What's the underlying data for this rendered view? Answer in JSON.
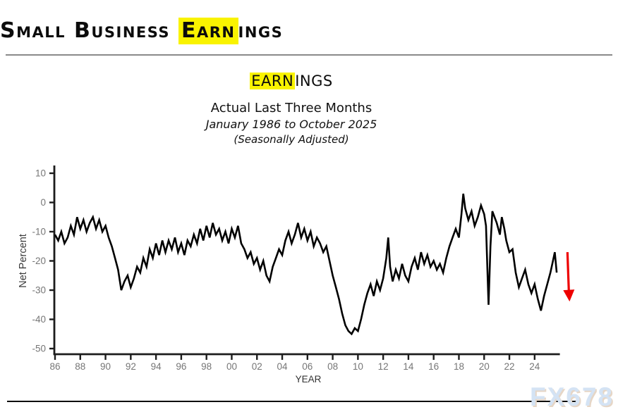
{
  "header": {
    "title": {
      "pre": "Small Business ",
      "highlight": "Earn",
      "post": "ings"
    }
  },
  "chart_header": {
    "title": {
      "highlight": "EARN",
      "post": "INGS"
    },
    "subtitle": "Actual Last Three Months",
    "period": "January 1986 to October 2025",
    "note": "(Seasonally Adjusted)"
  },
  "watermark": "FX678",
  "colors": {
    "highlight": "#f9f300",
    "line": "#000000",
    "axis": "#1c1c1c",
    "tick_label": "#767676",
    "axis_title": "#3a3a3a",
    "arrow": "#ee0000",
    "watermark": "#d4e3f4",
    "watermark_shadow": "#e6d6c6"
  },
  "chart_data": {
    "type": "line",
    "title": "EARNINGS",
    "subtitle": "Actual Last Three Months, January 1986 to October 2025 (Seasonally Adjusted)",
    "xlabel": "YEAR",
    "ylabel": "Net Percent",
    "xlim": [
      1986,
      2026
    ],
    "ylim": [
      -50,
      10
    ],
    "grid": false,
    "legend": null,
    "yticks": [
      10,
      0,
      -10,
      -20,
      -30,
      -40,
      -50
    ],
    "xtick_years": [
      1986,
      1988,
      1990,
      1992,
      1994,
      1996,
      1998,
      2000,
      2002,
      2004,
      2006,
      2008,
      2010,
      2012,
      2014,
      2016,
      2018,
      2020,
      2022,
      2024
    ],
    "xtick_labels": [
      "86",
      "88",
      "90",
      "92",
      "94",
      "96",
      "98",
      "00",
      "02",
      "04",
      "06",
      "08",
      "10",
      "12",
      "14",
      "16",
      "18",
      "20",
      "22",
      "24"
    ],
    "annotation_arrow": {
      "x_year": 2026.6,
      "from_value": -17,
      "to_value": -33.9
    },
    "points": [
      [
        1986.0,
        -11
      ],
      [
        1986.25,
        -13
      ],
      [
        1986.5,
        -10
      ],
      [
        1986.75,
        -14
      ],
      [
        1987.0,
        -12
      ],
      [
        1987.25,
        -8
      ],
      [
        1987.5,
        -11
      ],
      [
        1987.75,
        -5
      ],
      [
        1988.0,
        -9
      ],
      [
        1988.25,
        -6
      ],
      [
        1988.5,
        -10
      ],
      [
        1988.75,
        -7
      ],
      [
        1989.0,
        -5
      ],
      [
        1989.25,
        -9
      ],
      [
        1989.5,
        -6
      ],
      [
        1989.75,
        -10
      ],
      [
        1990.0,
        -8
      ],
      [
        1990.25,
        -12
      ],
      [
        1990.5,
        -15
      ],
      [
        1990.75,
        -19
      ],
      [
        1991.0,
        -23
      ],
      [
        1991.25,
        -30
      ],
      [
        1991.5,
        -27
      ],
      [
        1991.75,
        -25
      ],
      [
        1992.0,
        -29
      ],
      [
        1992.25,
        -26
      ],
      [
        1992.5,
        -22
      ],
      [
        1992.75,
        -24
      ],
      [
        1993.0,
        -19
      ],
      [
        1993.25,
        -22
      ],
      [
        1993.5,
        -16
      ],
      [
        1993.75,
        -19
      ],
      [
        1994.0,
        -14
      ],
      [
        1994.25,
        -18
      ],
      [
        1994.5,
        -13
      ],
      [
        1994.75,
        -17
      ],
      [
        1995.0,
        -13
      ],
      [
        1995.25,
        -16
      ],
      [
        1995.5,
        -12
      ],
      [
        1995.75,
        -17
      ],
      [
        1996.0,
        -14
      ],
      [
        1996.25,
        -18
      ],
      [
        1996.5,
        -13
      ],
      [
        1996.75,
        -15
      ],
      [
        1997.0,
        -11
      ],
      [
        1997.25,
        -14
      ],
      [
        1997.5,
        -9
      ],
      [
        1997.75,
        -13
      ],
      [
        1998.0,
        -8
      ],
      [
        1998.25,
        -12
      ],
      [
        1998.5,
        -7
      ],
      [
        1998.75,
        -11
      ],
      [
        1999.0,
        -9
      ],
      [
        1999.25,
        -13
      ],
      [
        1999.5,
        -10
      ],
      [
        1999.75,
        -14
      ],
      [
        2000.0,
        -9
      ],
      [
        2000.25,
        -12
      ],
      [
        2000.5,
        -8
      ],
      [
        2000.75,
        -14
      ],
      [
        2001.0,
        -16
      ],
      [
        2001.25,
        -19
      ],
      [
        2001.5,
        -17
      ],
      [
        2001.75,
        -21
      ],
      [
        2002.0,
        -19
      ],
      [
        2002.25,
        -23
      ],
      [
        2002.5,
        -20
      ],
      [
        2002.75,
        -25
      ],
      [
        2003.0,
        -27
      ],
      [
        2003.25,
        -22
      ],
      [
        2003.5,
        -19
      ],
      [
        2003.75,
        -16
      ],
      [
        2004.0,
        -18
      ],
      [
        2004.25,
        -13
      ],
      [
        2004.5,
        -10
      ],
      [
        2004.75,
        -14
      ],
      [
        2005.0,
        -11
      ],
      [
        2005.25,
        -7
      ],
      [
        2005.5,
        -12
      ],
      [
        2005.75,
        -9
      ],
      [
        2006.0,
        -13
      ],
      [
        2006.25,
        -10
      ],
      [
        2006.5,
        -15
      ],
      [
        2006.75,
        -12
      ],
      [
        2007.0,
        -14
      ],
      [
        2007.25,
        -17
      ],
      [
        2007.5,
        -15
      ],
      [
        2007.75,
        -20
      ],
      [
        2008.0,
        -25
      ],
      [
        2008.25,
        -29
      ],
      [
        2008.5,
        -33
      ],
      [
        2008.75,
        -38
      ],
      [
        2009.0,
        -42
      ],
      [
        2009.25,
        -44
      ],
      [
        2009.5,
        -45
      ],
      [
        2009.75,
        -43
      ],
      [
        2010.0,
        -44
      ],
      [
        2010.25,
        -40
      ],
      [
        2010.5,
        -35
      ],
      [
        2010.75,
        -31
      ],
      [
        2011.0,
        -28
      ],
      [
        2011.25,
        -32
      ],
      [
        2011.5,
        -27
      ],
      [
        2011.75,
        -30
      ],
      [
        2012.0,
        -26
      ],
      [
        2012.25,
        -19
      ],
      [
        2012.4,
        -12
      ],
      [
        2012.55,
        -22
      ],
      [
        2012.75,
        -27
      ],
      [
        2013.0,
        -23
      ],
      [
        2013.25,
        -26
      ],
      [
        2013.5,
        -21
      ],
      [
        2013.75,
        -25
      ],
      [
        2014.0,
        -27
      ],
      [
        2014.25,
        -22
      ],
      [
        2014.5,
        -19
      ],
      [
        2014.75,
        -23
      ],
      [
        2015.0,
        -17
      ],
      [
        2015.25,
        -21
      ],
      [
        2015.5,
        -18
      ],
      [
        2015.75,
        -22
      ],
      [
        2016.0,
        -20
      ],
      [
        2016.25,
        -23
      ],
      [
        2016.5,
        -21
      ],
      [
        2016.75,
        -24
      ],
      [
        2017.0,
        -19
      ],
      [
        2017.25,
        -15
      ],
      [
        2017.5,
        -12
      ],
      [
        2017.75,
        -9
      ],
      [
        2018.0,
        -12
      ],
      [
        2018.2,
        -4
      ],
      [
        2018.35,
        3
      ],
      [
        2018.5,
        -2
      ],
      [
        2018.75,
        -6
      ],
      [
        2019.0,
        -3
      ],
      [
        2019.25,
        -8
      ],
      [
        2019.5,
        -5
      ],
      [
        2019.75,
        -1
      ],
      [
        2020.0,
        -4
      ],
      [
        2020.15,
        -8
      ],
      [
        2020.35,
        -35
      ],
      [
        2020.5,
        -15
      ],
      [
        2020.65,
        -3
      ],
      [
        2021.0,
        -7
      ],
      [
        2021.25,
        -11
      ],
      [
        2021.4,
        -5
      ],
      [
        2021.6,
        -9
      ],
      [
        2021.75,
        -13
      ],
      [
        2022.0,
        -17
      ],
      [
        2022.25,
        -16
      ],
      [
        2022.5,
        -24
      ],
      [
        2022.75,
        -29
      ],
      [
        2023.0,
        -26
      ],
      [
        2023.25,
        -23
      ],
      [
        2023.5,
        -28
      ],
      [
        2023.75,
        -31
      ],
      [
        2024.0,
        -28
      ],
      [
        2024.25,
        -33
      ],
      [
        2024.5,
        -37
      ],
      [
        2024.75,
        -32
      ],
      [
        2025.0,
        -28
      ],
      [
        2025.25,
        -24
      ],
      [
        2025.45,
        -20
      ],
      [
        2025.6,
        -17
      ],
      [
        2025.75,
        -24
      ]
    ]
  }
}
